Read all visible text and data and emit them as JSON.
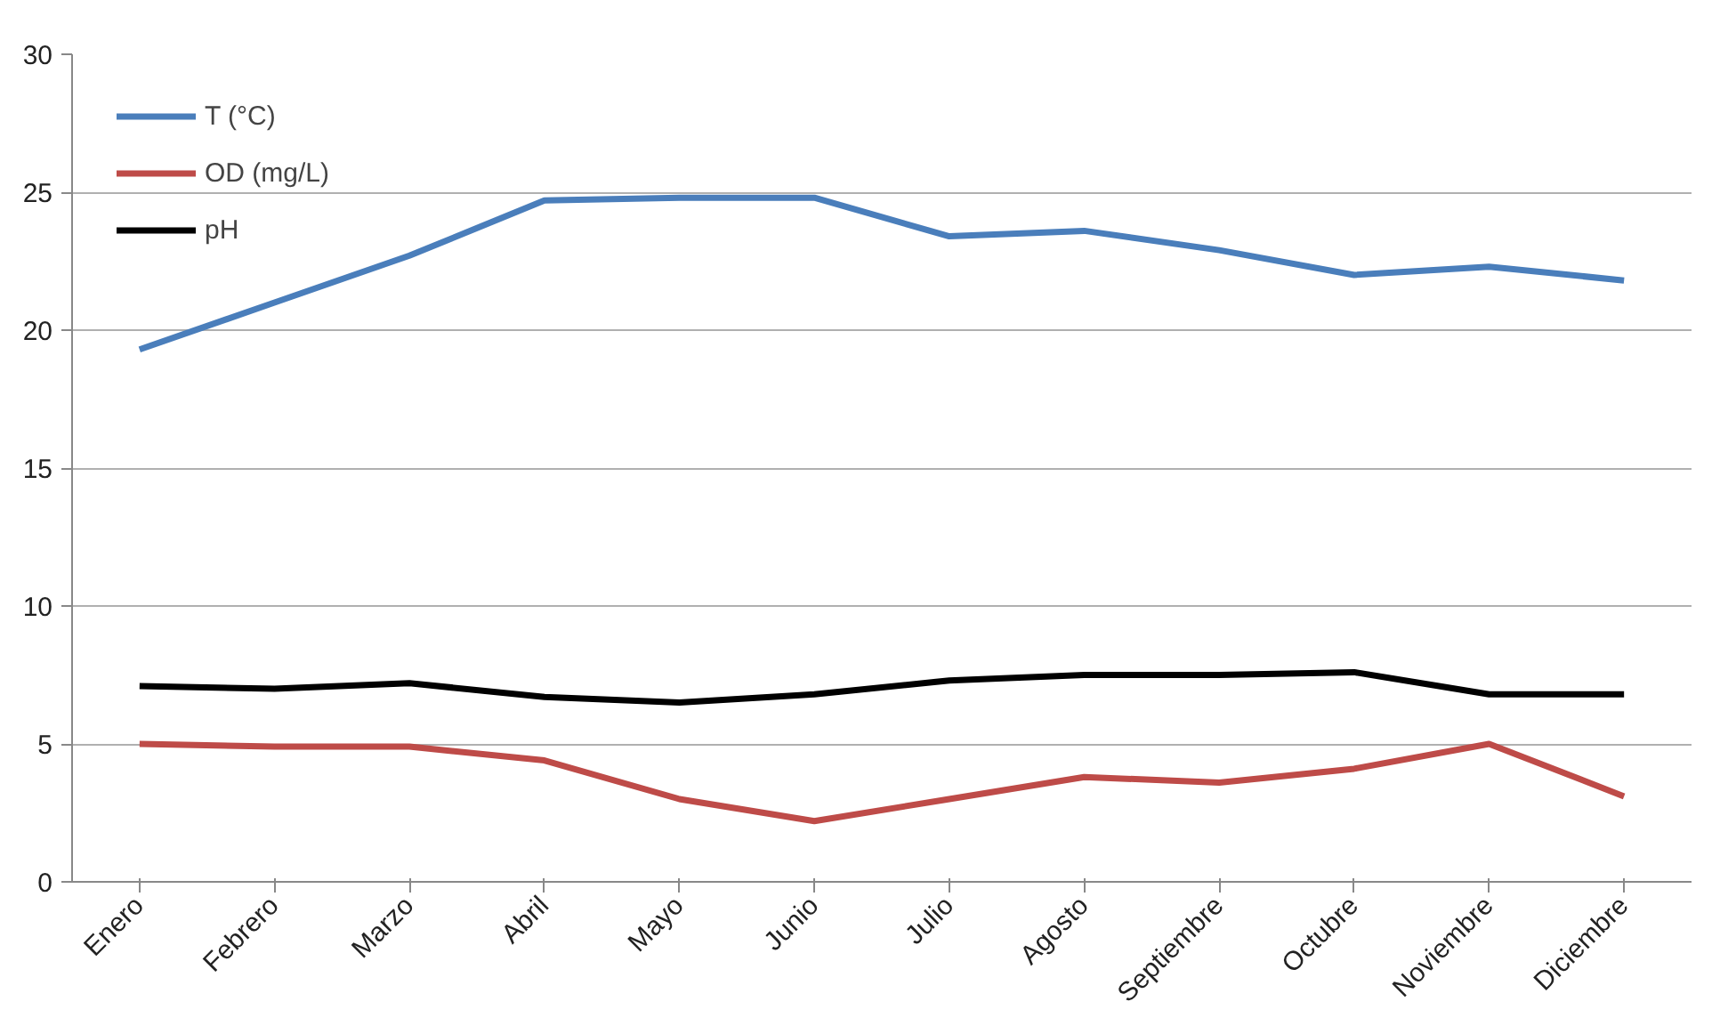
{
  "chart_data": {
    "type": "line",
    "categories": [
      "Enero",
      "Febrero",
      "Marzo",
      "Abril",
      "Mayo",
      "Junio",
      "Julio",
      "Agosto",
      "Septiembre",
      "Octubre",
      "Noviembre",
      "Diciembre"
    ],
    "series": [
      {
        "name": "T (°C)",
        "color": "#4a7ebb",
        "values": [
          19.3,
          21.0,
          22.7,
          24.7,
          24.8,
          24.8,
          23.4,
          23.6,
          22.9,
          22.0,
          22.3,
          21.8
        ]
      },
      {
        "name": "OD (mg/L)",
        "color": "#be4b48",
        "values": [
          5.0,
          4.9,
          4.9,
          4.4,
          3.0,
          2.2,
          3.0,
          3.8,
          3.6,
          4.1,
          5.0,
          3.1
        ]
      },
      {
        "name": "pH",
        "color": "#000000",
        "values": [
          7.1,
          7.0,
          7.2,
          6.7,
          6.5,
          6.8,
          7.3,
          7.5,
          7.5,
          7.6,
          6.8,
          6.8
        ]
      }
    ],
    "ylim": [
      0,
      30
    ],
    "yticks": [
      0,
      5,
      10,
      15,
      20,
      25,
      30
    ],
    "grid": "y",
    "legend": "top left",
    "marker": "none",
    "line_style": "solid"
  }
}
